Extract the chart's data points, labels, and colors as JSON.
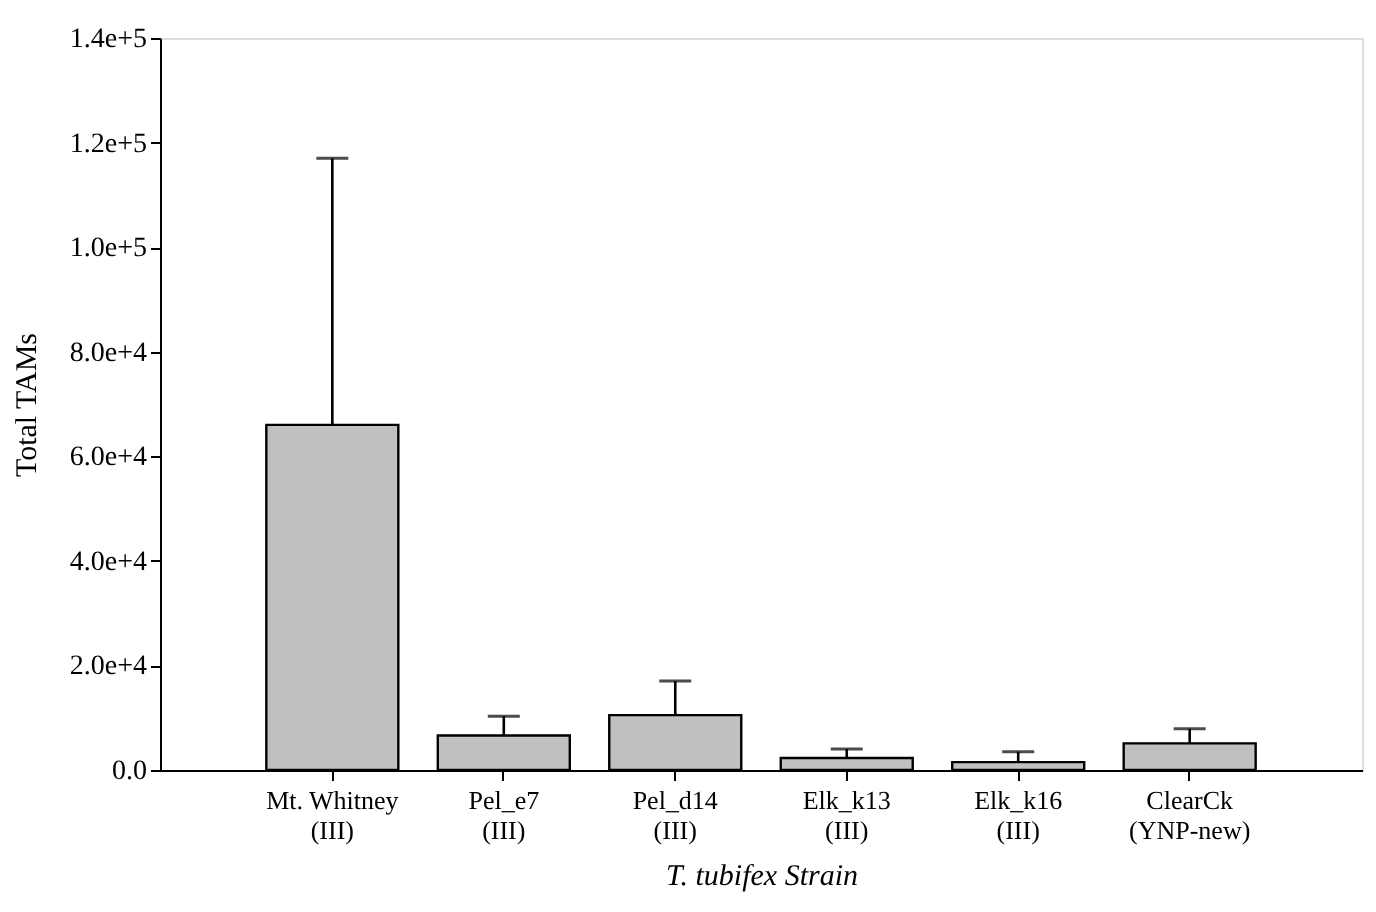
{
  "chart_data": {
    "type": "bar",
    "xlabel": "T. tubifex Strain",
    "ylabel": "Total TAMs",
    "categories": [
      "Mt. Whitney\n(III)",
      "Pel_e7\n(III)",
      "Pel_d14\n(III)",
      "Elk_k13\n(III)",
      "Elk_k16\n(III)",
      "ClearCk\n(YNP-new)"
    ],
    "values": [
      66000,
      6600,
      10500,
      2300,
      1500,
      5100
    ],
    "errors": [
      [
        66000,
        117000
      ],
      [
        6600,
        10300
      ],
      [
        10500,
        17000
      ],
      [
        2300,
        4000
      ],
      [
        1500,
        3500
      ],
      [
        5100,
        7900
      ]
    ],
    "color": "#c0c0c0",
    "ylim": [
      0,
      140000
    ],
    "yticks": [
      {
        "value": 0,
        "label": "0.0"
      },
      {
        "value": 20000,
        "label": "2.0e+4"
      },
      {
        "value": 40000,
        "label": "4.0e+4"
      },
      {
        "value": 60000,
        "label": "6.0e+4"
      },
      {
        "value": 80000,
        "label": "8.0e+4"
      },
      {
        "value": 100000,
        "label": "1.0e+5"
      },
      {
        "value": 120000,
        "label": "1.2e+5"
      },
      {
        "value": 140000,
        "label": "1.4e+5"
      }
    ],
    "grid": false
  }
}
